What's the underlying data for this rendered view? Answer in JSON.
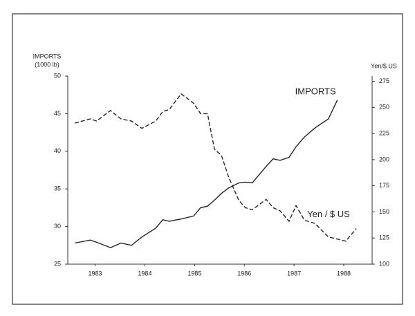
{
  "chart_data": {
    "type": "line",
    "ylabel": [
      "IMPORTS",
      "(1000 lb)"
    ],
    "y2label": "Yen/$ US",
    "x": [
      1982.59,
      1982.9,
      1983.03,
      1983.31,
      1983.52,
      1983.73,
      1983.94,
      1984.22,
      1984.36,
      1984.49,
      1984.73,
      1984.98,
      1985.12,
      1985.26,
      1985.4,
      1985.54,
      1985.68,
      1985.89,
      1986.02,
      1986.16,
      1986.44,
      1986.58,
      1986.72,
      1986.9,
      1987.04,
      1987.21,
      1987.42,
      1987.69,
      1987.87,
      1988.04,
      1988.25
    ],
    "series": [
      {
        "name": "IMPORTS",
        "color": "#222222",
        "dashed": false,
        "axis": "y",
        "values": [
          27.8,
          28.2,
          27.9,
          27.2,
          27.8,
          27.5,
          28.6,
          29.8,
          30.9,
          30.7,
          31.0,
          31.4,
          32.5,
          32.7,
          33.5,
          34.4,
          35.1,
          35.8,
          35.9,
          35.8,
          38.0,
          39.0,
          38.8,
          39.2,
          40.6,
          41.9,
          43.1,
          44.3,
          46.8,
          null,
          null
        ]
      },
      {
        "name": "Yen / $ US",
        "color": "#222222",
        "dashed": true,
        "axis": "y2",
        "values": [
          235,
          239,
          237,
          247,
          239,
          237,
          230,
          237,
          246,
          248,
          263,
          254,
          244,
          244,
          210,
          204,
          184,
          161,
          154,
          152,
          162,
          154,
          151,
          141,
          156,
          142,
          139,
          126,
          124,
          122,
          134
        ]
      }
    ],
    "xlim": [
      1982.45,
      1988.57
    ],
    "xticks": [
      1983,
      1984,
      1985,
      1986,
      1987,
      1988
    ],
    "ylim": [
      25,
      50
    ],
    "yticks": [
      25,
      30,
      35,
      40,
      45,
      50
    ],
    "y2lim": [
      100,
      280
    ],
    "y2ticks": [
      100,
      125,
      150,
      175,
      200,
      225,
      250,
      275
    ],
    "grid": false
  }
}
